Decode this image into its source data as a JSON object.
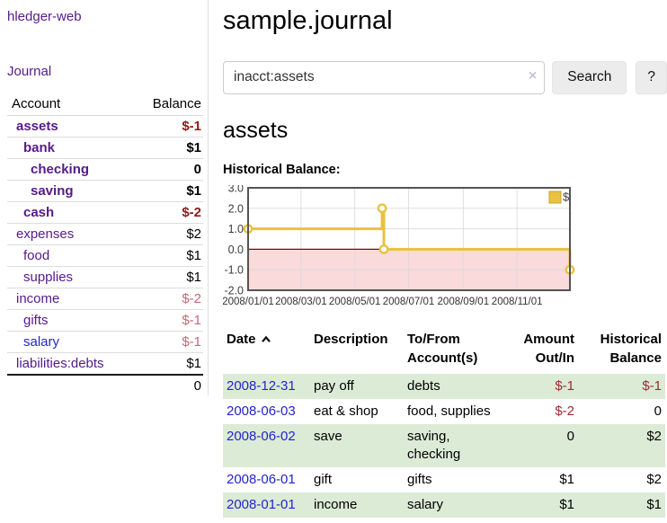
{
  "app": {
    "title": "hledger-web"
  },
  "sidebar": {
    "journal_link": "Journal",
    "table": {
      "account_header": "Account",
      "balance_header": "Balance",
      "rows": [
        {
          "name": "assets",
          "balance": "$-1",
          "level": 1,
          "bold": true,
          "link_color": "purple",
          "balance_color": "negative"
        },
        {
          "name": "bank",
          "balance": "$1",
          "level": 2,
          "bold": true,
          "link_color": "purple",
          "balance_color": "normal"
        },
        {
          "name": "checking",
          "balance": "0",
          "level": 3,
          "bold": true,
          "link_color": "purple",
          "balance_color": "normal"
        },
        {
          "name": "saving",
          "balance": "$1",
          "level": 3,
          "bold": true,
          "link_color": "purple",
          "balance_color": "normal"
        },
        {
          "name": "cash",
          "balance": "$-2",
          "level": 2,
          "bold": true,
          "link_color": "purple",
          "balance_color": "negative"
        },
        {
          "name": "expenses",
          "balance": "$2",
          "level": 1,
          "bold": false,
          "link_color": "purple",
          "balance_color": "normal"
        },
        {
          "name": "food",
          "balance": "$1",
          "level": 2,
          "bold": false,
          "link_color": "purple",
          "balance_color": "normal"
        },
        {
          "name": "supplies",
          "balance": "$1",
          "level": 2,
          "bold": false,
          "link_color": "purple",
          "balance_color": "normal"
        },
        {
          "name": "income",
          "balance": "$-2",
          "level": 1,
          "bold": false,
          "link_color": "purple",
          "balance_color": "negative-muted"
        },
        {
          "name": "gifts",
          "balance": "$-1",
          "level": 2,
          "bold": false,
          "link_color": "purple",
          "balance_color": "negative-muted"
        },
        {
          "name": "salary",
          "balance": "$-1",
          "level": 2,
          "bold": false,
          "link_color": "blue",
          "balance_color": "negative-muted"
        },
        {
          "name": "liabilities:debts",
          "balance": "$1",
          "level": 1,
          "bold": false,
          "link_color": "purple",
          "balance_color": "normal"
        }
      ],
      "total": "0"
    }
  },
  "header": {
    "title": "sample.journal"
  },
  "search": {
    "value": "inacct:assets",
    "clear_icon": "×",
    "button": "Search",
    "help_button": "?"
  },
  "account_page": {
    "title": "assets",
    "chart_label": "Historical Balance:"
  },
  "chart_data": {
    "type": "line",
    "step": true,
    "title": "Historical Balance",
    "series": [
      {
        "name": "$",
        "points": [
          {
            "date": "2008-01-01",
            "value": 1
          },
          {
            "date": "2008-06-01",
            "value": 2
          },
          {
            "date": "2008-06-03",
            "value": 0
          },
          {
            "date": "2008-12-31",
            "value": -1
          }
        ]
      }
    ],
    "x_range": {
      "start": "2008-01-01",
      "end": "2008-12-31"
    },
    "x_tick_labels": [
      "2008/01/01",
      "2008/03/01",
      "2008/05/01",
      "2008/07/01",
      "2008/09/01",
      "2008/11/01"
    ],
    "y_tick_labels": [
      "3.0",
      "2.0",
      "1.0",
      "0.0",
      "-1.0",
      "-2.0"
    ],
    "ylim": [
      -2,
      3
    ],
    "grid": true,
    "legend_position": "top-right",
    "colors": {
      "line": "#e8c240",
      "marker_fill": "#ffffff",
      "legend_border": "#c9a32b",
      "negative_region": "#fadada",
      "zero_line": "#8b0000",
      "border": "#545454",
      "grid": "#dadada",
      "tick_text": "#3c3c3c"
    }
  },
  "transactions": {
    "headers": [
      {
        "lines": [
          "Date"
        ],
        "sort": "asc"
      },
      {
        "lines": [
          "Description"
        ]
      },
      {
        "lines": [
          "To/From",
          "Account(s)"
        ]
      },
      {
        "lines": [
          "Amount",
          "Out/In"
        ],
        "align": "right"
      },
      {
        "lines": [
          "Historical",
          "Balance"
        ],
        "align": "right"
      }
    ],
    "rows": [
      {
        "date": "2008-12-31",
        "description": "pay off",
        "accounts": "debts",
        "amount": "$-1",
        "amount_color": "negative",
        "balance": "$-1",
        "balance_color": "negative"
      },
      {
        "date": "2008-06-03",
        "description": "eat & shop",
        "accounts": "food, supplies",
        "amount": "$-2",
        "amount_color": "negative",
        "balance": "0",
        "balance_color": "normal"
      },
      {
        "date": "2008-06-02",
        "description": "save",
        "accounts": "saving, checking",
        "amount": "0",
        "amount_color": "normal",
        "balance": "$2",
        "balance_color": "normal"
      },
      {
        "date": "2008-06-01",
        "description": "gift",
        "accounts": "gifts",
        "amount": "$1",
        "amount_color": "normal",
        "balance": "$2",
        "balance_color": "normal"
      },
      {
        "date": "2008-01-01",
        "description": "income",
        "accounts": "salary",
        "amount": "$1",
        "amount_color": "normal",
        "balance": "$1",
        "balance_color": "normal"
      }
    ]
  }
}
